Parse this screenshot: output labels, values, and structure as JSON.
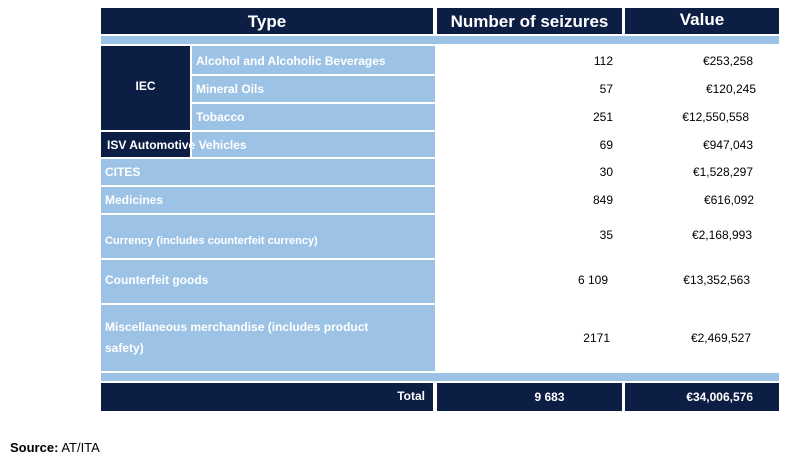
{
  "table": {
    "headers": {
      "type": "Type",
      "seizures": "Number of seizures",
      "value": "Value"
    },
    "groups": {
      "iec": "IEC"
    },
    "rows": [
      {
        "label": "Alcohol and Alcoholic Beverages",
        "seizures": "112",
        "value": "€253,258"
      },
      {
        "label": "Mineral Oils",
        "seizures": "57",
        "value": "€120,245"
      },
      {
        "label": "Tobacco",
        "seizures": "251",
        "value": "€12,550,558"
      },
      {
        "label": "ISV Automotive Vehicles",
        "seizures": "69",
        "value": "€947,043"
      },
      {
        "label": "CITES",
        "seizures": "30",
        "value": "€1,528,297"
      },
      {
        "label": "Medicines",
        "seizures": "849",
        "value": "€616,092"
      },
      {
        "label": "Currency (includes counterfeit currency)",
        "seizures": "35",
        "value": "€2,168,993"
      },
      {
        "label": "Counterfeit goods",
        "seizures": "6 109",
        "value": "€13,352,563"
      },
      {
        "label": "Miscellaneous merchandise (includes product safety)",
        "seizures": "2171",
        "value": "€2,469,527"
      }
    ],
    "total": {
      "label": "Total",
      "seizures": "9 683",
      "value": "€34,006,576"
    }
  },
  "source": {
    "label": "Source:",
    "text": "AT/ITA"
  }
}
